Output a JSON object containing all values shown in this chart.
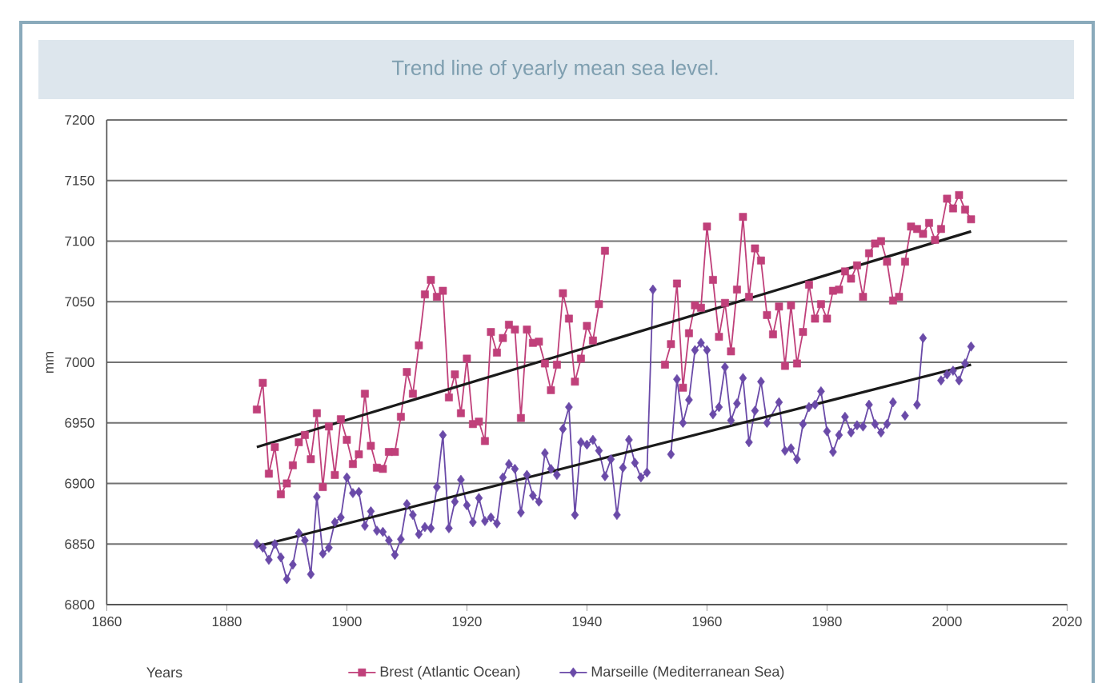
{
  "chart_data": {
    "type": "line",
    "title": "Trend line of yearly mean sea level.",
    "xlabel": "Years",
    "ylabel": "mm",
    "xlim": [
      1860,
      2020
    ],
    "xticks": [
      1860,
      1880,
      1900,
      1920,
      1940,
      1960,
      1980,
      2000,
      2020
    ],
    "ylim": [
      6800,
      7200
    ],
    "yticks": [
      6800,
      6850,
      6900,
      6950,
      7000,
      7050,
      7100,
      7150,
      7200
    ],
    "grid": "y",
    "legend": "bottom",
    "series": [
      {
        "name": "Brest (Atlantic Ocean)",
        "type": "line",
        "marker": "square",
        "color": "#c0407a",
        "x": [
          1885,
          1886,
          1887,
          1888,
          1889,
          1890,
          1891,
          1892,
          1893,
          1894,
          1895,
          1896,
          1897,
          1898,
          1899,
          1900,
          1901,
          1902,
          1903,
          1904,
          1905,
          1906,
          1907,
          1908,
          1909,
          1910,
          1911,
          1912,
          1913,
          1914,
          1915,
          1916,
          1917,
          1918,
          1919,
          1920,
          1921,
          1922,
          1923,
          1924,
          1925,
          1926,
          1927,
          1928,
          1929,
          1930,
          1931,
          1932,
          1933,
          1934,
          1935,
          1936,
          1937,
          1938,
          1939,
          1940,
          1941,
          1942,
          1943,
          1944,
          1945,
          1946,
          1947,
          1948,
          1949,
          1950,
          1951,
          1952,
          1953,
          1954,
          1955,
          1956,
          1957,
          1958,
          1959,
          1960,
          1961,
          1962,
          1963,
          1964,
          1965,
          1966,
          1967,
          1968,
          1969,
          1970,
          1971,
          1972,
          1973,
          1974,
          1975,
          1976,
          1977,
          1978,
          1979,
          1980,
          1981,
          1982,
          1983,
          1984,
          1985,
          1986,
          1987,
          1988,
          1989,
          1990,
          1991,
          1992,
          1993,
          1994,
          1995,
          1996,
          1997,
          1998,
          1999,
          2000,
          2001,
          2002,
          2003,
          2004
        ],
        "values": [
          6961,
          6983,
          6908,
          6930,
          6891,
          6900,
          6915,
          6934,
          6940,
          6920,
          6958,
          6897,
          6947,
          6907,
          6953,
          6936,
          6916,
          6924,
          6974,
          6931,
          6913,
          6912,
          6926,
          6926,
          6955,
          6992,
          6974,
          7014,
          7056,
          7068,
          7054,
          7059,
          6971,
          6990,
          6958,
          7003,
          6949,
          6951,
          6935,
          7025,
          7008,
          7020,
          7031,
          7027,
          6954,
          7027,
          7016,
          7017,
          6999,
          6977,
          6998,
          7057,
          7036,
          6984,
          7003,
          7030,
          7018,
          7048,
          7092,
          null,
          null,
          null,
          null,
          null,
          null,
          null,
          null,
          null,
          6998,
          7015,
          7065,
          6979,
          7024,
          7047,
          7045,
          7112,
          7068,
          7021,
          7049,
          7009,
          7060,
          7120,
          7054,
          7094,
          7084,
          7039,
          7023,
          7046,
          6997,
          7047,
          6999,
          7025,
          7064,
          7036,
          7048,
          7036,
          7059,
          7060,
          7075,
          7069,
          7080,
          7054,
          7090,
          7098,
          7100,
          7083,
          7051,
          7054,
          7083,
          7112,
          7110,
          7106,
          7115,
          7101,
          7110,
          7135,
          7127,
          7138,
          7126,
          7118
        ]
      },
      {
        "name": "Marseille (Mediterranean Sea)",
        "type": "line",
        "marker": "diamond",
        "color": "#6a4aa8",
        "x": [
          1885,
          1886,
          1887,
          1888,
          1889,
          1890,
          1891,
          1892,
          1893,
          1894,
          1895,
          1896,
          1897,
          1898,
          1899,
          1900,
          1901,
          1902,
          1903,
          1904,
          1905,
          1906,
          1907,
          1908,
          1909,
          1910,
          1911,
          1912,
          1913,
          1914,
          1915,
          1916,
          1917,
          1918,
          1919,
          1920,
          1921,
          1922,
          1923,
          1924,
          1925,
          1926,
          1927,
          1928,
          1929,
          1930,
          1931,
          1932,
          1933,
          1934,
          1935,
          1936,
          1937,
          1938,
          1939,
          1940,
          1941,
          1942,
          1943,
          1944,
          1945,
          1946,
          1947,
          1948,
          1949,
          1950,
          1951,
          1952,
          1953,
          1954,
          1955,
          1956,
          1957,
          1958,
          1959,
          1960,
          1961,
          1962,
          1963,
          1964,
          1965,
          1966,
          1967,
          1968,
          1969,
          1970,
          1972,
          1973,
          1974,
          1975,
          1976,
          1977,
          1978,
          1979,
          1980,
          1981,
          1982,
          1983,
          1984,
          1985,
          1986,
          1987,
          1988,
          1989,
          1990,
          1991,
          1992,
          1993,
          1994,
          1995,
          1996,
          1997,
          1998,
          1999,
          2000,
          2001,
          2002,
          2003,
          2004
        ],
        "values": [
          6850,
          6847,
          6837,
          6850,
          6839,
          6821,
          6833,
          6859,
          6853,
          6825,
          6889,
          6842,
          6847,
          6868,
          6872,
          6905,
          6892,
          6893,
          6865,
          6877,
          6861,
          6860,
          6853,
          6841,
          6854,
          6883,
          6874,
          6858,
          6864,
          6863,
          6897,
          6940,
          6863,
          6885,
          6903,
          6882,
          6868,
          6888,
          6869,
          6872,
          6867,
          6905,
          6916,
          6912,
          6876,
          6907,
          6890,
          6885,
          6925,
          6912,
          6907,
          6945,
          6963,
          6874,
          6934,
          6932,
          6936,
          6927,
          6906,
          6920,
          6874,
          6913,
          6936,
          6917,
          6905,
          6909,
          7060,
          null,
          null,
          6924,
          6986,
          6950,
          6969,
          7010,
          7016,
          7010,
          6957,
          6963,
          6996,
          6952,
          6966,
          6987,
          6934,
          6960,
          6984,
          6950,
          6967,
          6927,
          6929,
          6920,
          6949,
          6963,
          6965,
          6976,
          6943,
          6926,
          6940,
          6955,
          6942,
          6948,
          6947,
          6965,
          6949,
          6942,
          6949,
          6967,
          null,
          6956,
          null,
          6965,
          7020,
          null,
          null,
          6985,
          6990,
          6993,
          6985,
          6999,
          7013
        ]
      },
      {
        "type": "line",
        "marker": "none",
        "color": "#1a1a1a",
        "x": [
          1885,
          2004
        ],
        "values": [
          6930,
          7108
        ]
      },
      {
        "type": "line",
        "marker": "none",
        "color": "#1a1a1a",
        "x": [
          1885,
          2004
        ],
        "values": [
          6848,
          6998
        ]
      }
    ]
  }
}
